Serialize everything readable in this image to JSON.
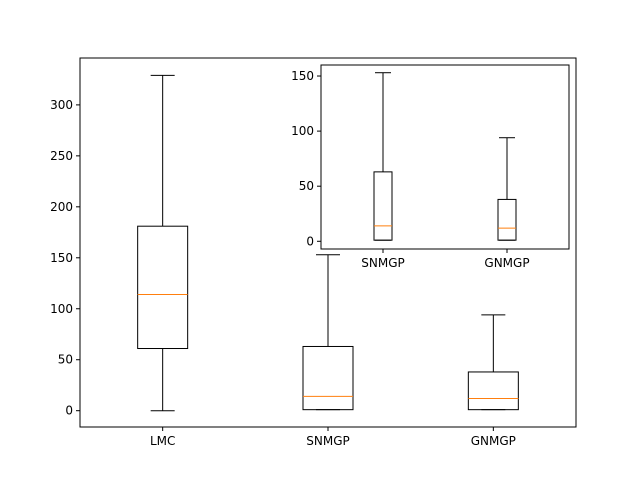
{
  "chart_data": [
    {
      "type": "box",
      "title": "",
      "xlabel": "",
      "ylabel": "",
      "ylim": [
        -16,
        346
      ],
      "yticks": [
        0,
        50,
        100,
        150,
        200,
        250,
        300
      ],
      "categories": [
        "LMC",
        "SNMGP",
        "GNMGP"
      ],
      "boxes": [
        {
          "whisker_low": 0,
          "q1": 61,
          "median": 114,
          "q3": 181,
          "whisker_high": 329
        },
        {
          "whisker_low": 1,
          "q1": 1,
          "median": 14,
          "q3": 63,
          "whisker_high": 153
        },
        {
          "whisker_low": 1,
          "q1": 1,
          "median": 12,
          "q3": 38,
          "whisker_high": 94
        }
      ]
    },
    {
      "type": "box",
      "title": "",
      "xlabel": "",
      "ylabel": "",
      "ylim": [
        -7,
        160
      ],
      "yticks": [
        0,
        50,
        100,
        150
      ],
      "categories": [
        "SNMGP",
        "GNMGP"
      ],
      "boxes": [
        {
          "whisker_low": 1,
          "q1": 1,
          "median": 14,
          "q3": 63,
          "whisker_high": 153
        },
        {
          "whisker_low": 1,
          "q1": 1,
          "median": 12,
          "q3": 38,
          "whisker_high": 94
        }
      ]
    }
  ],
  "colors": {
    "box": "#000000",
    "median": "#ff7f0e",
    "background": "#ffffff"
  }
}
